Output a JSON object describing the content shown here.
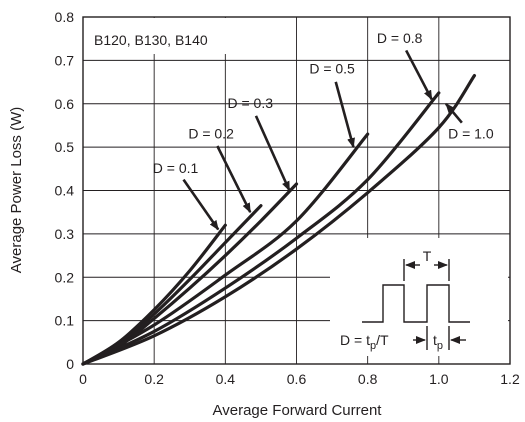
{
  "chart_data": {
    "type": "line",
    "title": "",
    "xlabel": "Average Forward Current",
    "ylabel": "Average Power Loss (W)",
    "xlim": [
      0,
      1.2
    ],
    "ylim": [
      0,
      0.8
    ],
    "x_ticks": [
      "0",
      "0.2",
      "0.4",
      "0.6",
      "0.8",
      "1.0",
      "1.2"
    ],
    "y_ticks": [
      "0",
      "0.1",
      "0.2",
      "0.3",
      "0.4",
      "0.5",
      "0.6",
      "0.7",
      "0.8"
    ],
    "grid": true,
    "device_label": "B120, B130, B140",
    "series": [
      {
        "name": "D = 0.1",
        "points": [
          [
            0,
            0
          ],
          [
            0.1,
            0.05
          ],
          [
            0.2,
            0.125
          ],
          [
            0.3,
            0.215
          ],
          [
            0.4,
            0.32
          ]
        ]
      },
      {
        "name": "D = 0.2",
        "points": [
          [
            0,
            0
          ],
          [
            0.1,
            0.045
          ],
          [
            0.2,
            0.115
          ],
          [
            0.3,
            0.195
          ],
          [
            0.4,
            0.28
          ],
          [
            0.5,
            0.365
          ]
        ]
      },
      {
        "name": "D = 0.3",
        "points": [
          [
            0,
            0
          ],
          [
            0.1,
            0.04
          ],
          [
            0.2,
            0.105
          ],
          [
            0.3,
            0.175
          ],
          [
            0.4,
            0.25
          ],
          [
            0.5,
            0.33
          ],
          [
            0.6,
            0.415
          ]
        ]
      },
      {
        "name": "D = 0.5",
        "points": [
          [
            0,
            0
          ],
          [
            0.2,
            0.09
          ],
          [
            0.4,
            0.205
          ],
          [
            0.6,
            0.33
          ],
          [
            0.8,
            0.53
          ]
        ]
      },
      {
        "name": "D = 0.8",
        "points": [
          [
            0,
            0
          ],
          [
            0.2,
            0.075
          ],
          [
            0.4,
            0.175
          ],
          [
            0.6,
            0.29
          ],
          [
            0.8,
            0.425
          ],
          [
            1.0,
            0.625
          ]
        ]
      },
      {
        "name": "D = 1.0",
        "points": [
          [
            0,
            0
          ],
          [
            0.2,
            0.065
          ],
          [
            0.4,
            0.155
          ],
          [
            0.6,
            0.265
          ],
          [
            0.8,
            0.395
          ],
          [
            1.0,
            0.545
          ],
          [
            1.1,
            0.665
          ]
        ]
      }
    ],
    "annotations": [
      {
        "text": "D = 0.1",
        "label_at": [
          0.26,
          0.44
        ],
        "arrow_to": [
          0.38,
          0.31
        ]
      },
      {
        "text": "D = 0.2",
        "label_at": [
          0.36,
          0.52
        ],
        "arrow_to": [
          0.47,
          0.35
        ]
      },
      {
        "text": "D = 0.3",
        "label_at": [
          0.47,
          0.59
        ],
        "arrow_to": [
          0.58,
          0.4
        ]
      },
      {
        "text": "D = 0.5",
        "label_at": [
          0.7,
          0.67
        ],
        "arrow_to": [
          0.76,
          0.5
        ]
      },
      {
        "text": "D = 0.8",
        "label_at": [
          0.89,
          0.74
        ],
        "arrow_to": [
          0.98,
          0.61
        ]
      },
      {
        "text": "D = 1.0",
        "label_at": [
          1.09,
          0.52
        ],
        "arrow_to": [
          1.02,
          0.6
        ]
      }
    ],
    "inset": {
      "period_label": "T",
      "duty_label_main": "D = t",
      "duty_label_sub": "p",
      "duty_label_tail": "/T",
      "pulse_label_main": "t",
      "pulse_label_sub": "p"
    }
  }
}
